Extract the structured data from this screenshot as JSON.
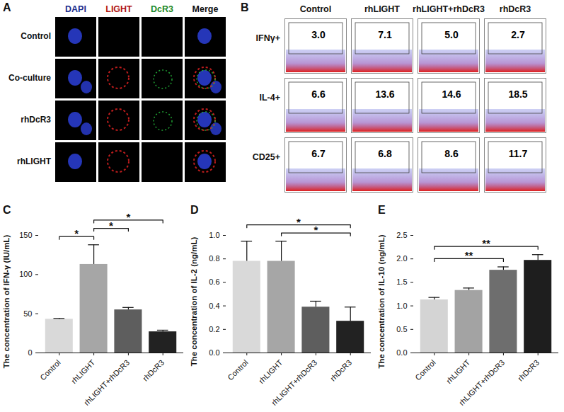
{
  "panels": {
    "A": {
      "label": "A",
      "columns": [
        "DAPI",
        "LIGHT",
        "DcR3",
        "Merge"
      ],
      "rows": [
        "Control",
        "Co-culture",
        "rhDcR3",
        "rhLIGHT"
      ]
    },
    "B": {
      "label": "B",
      "columns": [
        "Control",
        "rhLIGHT",
        "rhLIGHT+rhDcR3",
        "rhDcR3"
      ],
      "rows": [
        "IFNγ+",
        "IL-4+",
        "CD25+"
      ],
      "cells": [
        [
          "3.0",
          "7.1",
          "5.0",
          "2.7"
        ],
        [
          "6.6",
          "13.6",
          "14.6",
          "18.5"
        ],
        [
          "6.7",
          "6.8",
          "8.6",
          "11.7"
        ]
      ]
    }
  },
  "chart_data": [
    {
      "panel": "C",
      "type": "bar",
      "y_label": "The concentration of IFN-γ (IU/mL)",
      "categories": [
        "Control",
        "rhLIGHT",
        "rhLIGHT+rhDcR3",
        "rhDcR3"
      ],
      "values": [
        43,
        113,
        55,
        27
      ],
      "errors": [
        1,
        25,
        3,
        2
      ],
      "colors": [
        "#d9d9d9",
        "#a6a6a6",
        "#5e5e5e",
        "#222222"
      ],
      "ylim": [
        0,
        150
      ],
      "yticks": [
        0,
        50,
        100,
        150
      ],
      "significance": [
        {
          "from": "Control",
          "to": "rhLIGHT",
          "label": "*"
        },
        {
          "from": "rhLIGHT",
          "to": "rhLIGHT+rhDcR3",
          "label": "*"
        },
        {
          "from": "rhLIGHT",
          "to": "rhDcR3",
          "label": "*"
        }
      ]
    },
    {
      "panel": "D",
      "type": "bar",
      "y_label": "The concentration of IL-2 (ng/mL)",
      "categories": [
        "Control",
        "rhLIGHT",
        "rhLIGHT+rhDcR3",
        "rhDcR3"
      ],
      "values": [
        0.78,
        0.78,
        0.39,
        0.27
      ],
      "errors": [
        0.17,
        0.17,
        0.05,
        0.12
      ],
      "colors": [
        "#d9d9d9",
        "#a6a6a6",
        "#5e5e5e",
        "#222222"
      ],
      "ylim": [
        0,
        1.0
      ],
      "yticks": [
        {
          "value": 0,
          "label": "0.0"
        },
        {
          "value": 0.2,
          "label": "0.2"
        },
        {
          "value": 0.4,
          "label": "0.4"
        },
        {
          "value": 0.6,
          "label": "0.6"
        },
        {
          "value": 0.8,
          "label": "0.8"
        },
        {
          "value": 1.0,
          "label": "1.0"
        }
      ],
      "significance": [
        {
          "from": "rhLIGHT",
          "to": "rhDcR3",
          "label": "*"
        },
        {
          "from": "Control",
          "to": "rhDcR3",
          "label": "*"
        }
      ]
    },
    {
      "panel": "E",
      "type": "bar",
      "y_label": "The concentration of IL-10 (ng/mL)",
      "categories": [
        "Control",
        "rhLIGHT",
        "rhLIGHT+rhDcR3",
        "rhDcR3"
      ],
      "values": [
        1.13,
        1.33,
        1.76,
        1.97
      ],
      "errors": [
        0.05,
        0.05,
        0.07,
        0.12
      ],
      "colors": [
        "#d4d4d4",
        "#a3a3a3",
        "#6e6e6e",
        "#1e1e1e"
      ],
      "ylim": [
        0,
        2.5
      ],
      "yticks": [
        {
          "value": 0,
          "label": "0.0"
        },
        {
          "value": 0.5,
          "label": "0.5"
        },
        {
          "value": 1.0,
          "label": "1.0"
        },
        {
          "value": 1.5,
          "label": "1.5"
        },
        {
          "value": 2.0,
          "label": "2.0"
        },
        {
          "value": 2.5,
          "label": "2.5"
        }
      ],
      "significance": [
        {
          "from": "Control",
          "to": "rhLIGHT+rhDcR3",
          "label": "**"
        },
        {
          "from": "Control",
          "to": "rhDcR3",
          "label": "**"
        }
      ]
    }
  ]
}
